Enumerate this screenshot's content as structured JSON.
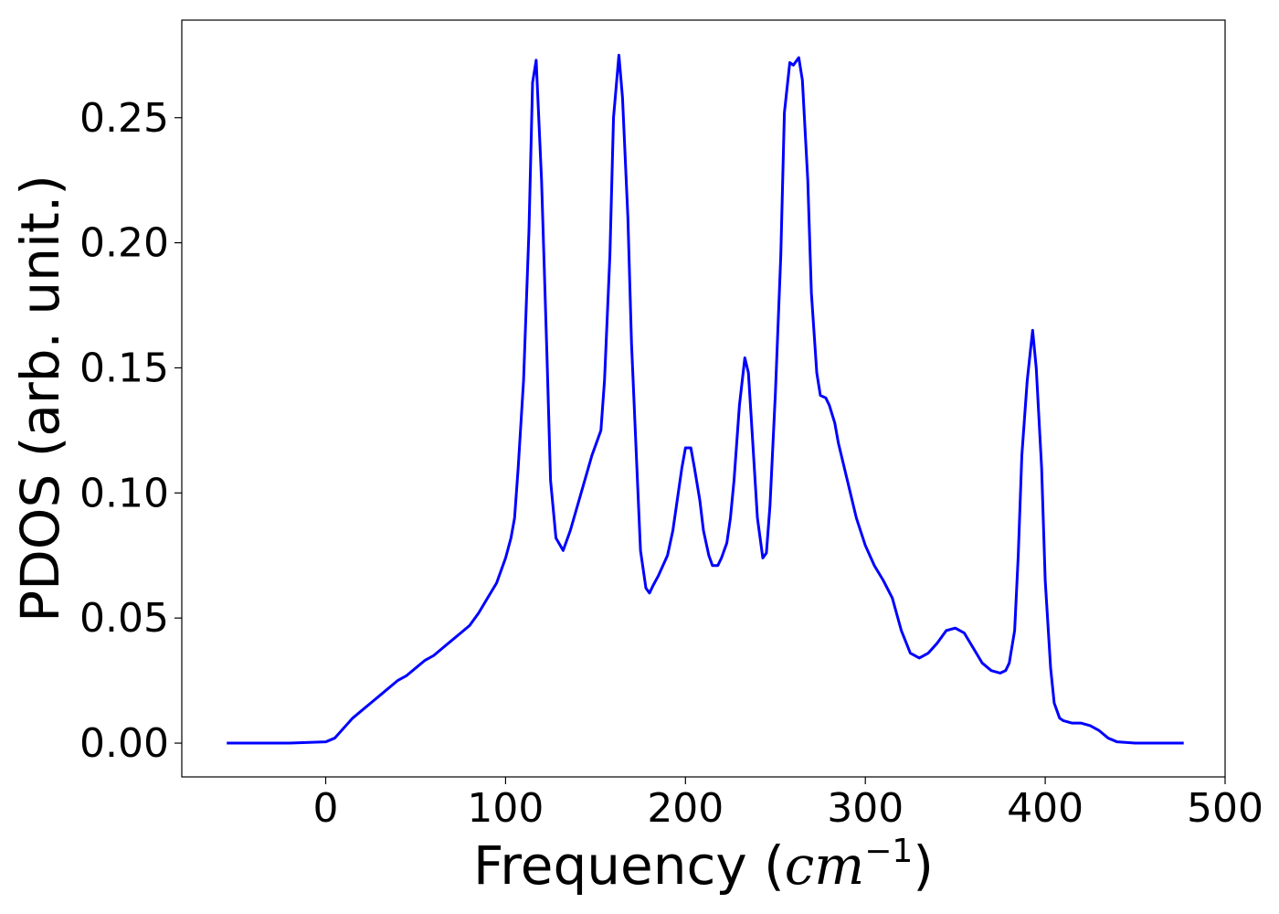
{
  "chart_data": {
    "type": "line",
    "title": "",
    "xlabel_main": "Frequency (",
    "xlabel_unit": "cm",
    "xlabel_exp": "−1",
    "xlabel_close": ")",
    "ylabel": "PDOS (arb. unit.)",
    "xlim": [
      -80,
      500
    ],
    "ylim": [
      -0.0135,
      0.289
    ],
    "xticks": [
      0,
      100,
      200,
      300,
      400,
      500
    ],
    "xtick_labels": [
      "0",
      "100",
      "200",
      "300",
      "400",
      "500"
    ],
    "yticks": [
      0.0,
      0.05,
      0.1,
      0.15,
      0.2,
      0.25
    ],
    "ytick_labels": [
      "0.00",
      "0.05",
      "0.10",
      "0.15",
      "0.20",
      "0.25"
    ],
    "grid": false,
    "legend": "none",
    "line_color": "#0000ff",
    "series": [
      {
        "x": [
          -55,
          -20,
          0,
          5,
          10,
          15,
          20,
          25,
          30,
          35,
          40,
          45,
          50,
          55,
          60,
          65,
          70,
          75,
          80,
          85,
          90,
          95,
          100,
          103,
          105,
          107,
          110,
          113,
          115,
          117,
          120,
          123,
          125,
          128,
          132,
          136,
          140,
          144,
          148,
          151,
          153,
          155,
          158,
          160,
          163,
          165,
          168,
          170,
          173,
          175,
          178,
          180,
          182,
          185,
          190,
          193,
          195,
          198,
          200,
          203,
          205,
          208,
          210,
          213,
          215,
          218,
          220,
          223,
          225,
          227,
          230,
          233,
          235,
          237,
          240,
          243,
          245,
          247,
          250,
          253,
          255,
          258,
          260,
          263,
          265,
          268,
          270,
          273,
          275,
          278,
          280,
          283,
          285,
          290,
          295,
          300,
          305,
          310,
          315,
          320,
          325,
          330,
          335,
          340,
          345,
          350,
          355,
          360,
          365,
          370,
          375,
          378,
          380,
          383,
          385,
          387,
          390,
          393,
          395,
          398,
          400,
          403,
          405,
          408,
          410,
          415,
          420,
          425,
          430,
          435,
          440,
          450,
          477
        ],
        "y": [
          0.0,
          0.0,
          0.0005,
          0.002,
          0.006,
          0.01,
          0.013,
          0.016,
          0.019,
          0.022,
          0.025,
          0.027,
          0.03,
          0.033,
          0.035,
          0.038,
          0.041,
          0.044,
          0.047,
          0.052,
          0.058,
          0.064,
          0.074,
          0.082,
          0.09,
          0.11,
          0.145,
          0.205,
          0.264,
          0.273,
          0.225,
          0.155,
          0.105,
          0.082,
          0.077,
          0.085,
          0.095,
          0.105,
          0.115,
          0.121,
          0.125,
          0.145,
          0.195,
          0.25,
          0.275,
          0.258,
          0.21,
          0.16,
          0.11,
          0.077,
          0.062,
          0.06,
          0.063,
          0.067,
          0.075,
          0.085,
          0.095,
          0.11,
          0.118,
          0.118,
          0.11,
          0.097,
          0.085,
          0.075,
          0.071,
          0.071,
          0.074,
          0.08,
          0.09,
          0.105,
          0.135,
          0.154,
          0.148,
          0.125,
          0.09,
          0.074,
          0.076,
          0.095,
          0.14,
          0.195,
          0.252,
          0.272,
          0.271,
          0.274,
          0.265,
          0.225,
          0.18,
          0.148,
          0.139,
          0.138,
          0.135,
          0.128,
          0.12,
          0.105,
          0.09,
          0.079,
          0.071,
          0.065,
          0.058,
          0.045,
          0.036,
          0.034,
          0.036,
          0.04,
          0.045,
          0.046,
          0.044,
          0.038,
          0.032,
          0.029,
          0.028,
          0.029,
          0.032,
          0.045,
          0.075,
          0.115,
          0.145,
          0.165,
          0.15,
          0.11,
          0.065,
          0.03,
          0.016,
          0.01,
          0.009,
          0.008,
          0.008,
          0.007,
          0.005,
          0.002,
          0.0005,
          0.0,
          0.0
        ]
      }
    ]
  }
}
